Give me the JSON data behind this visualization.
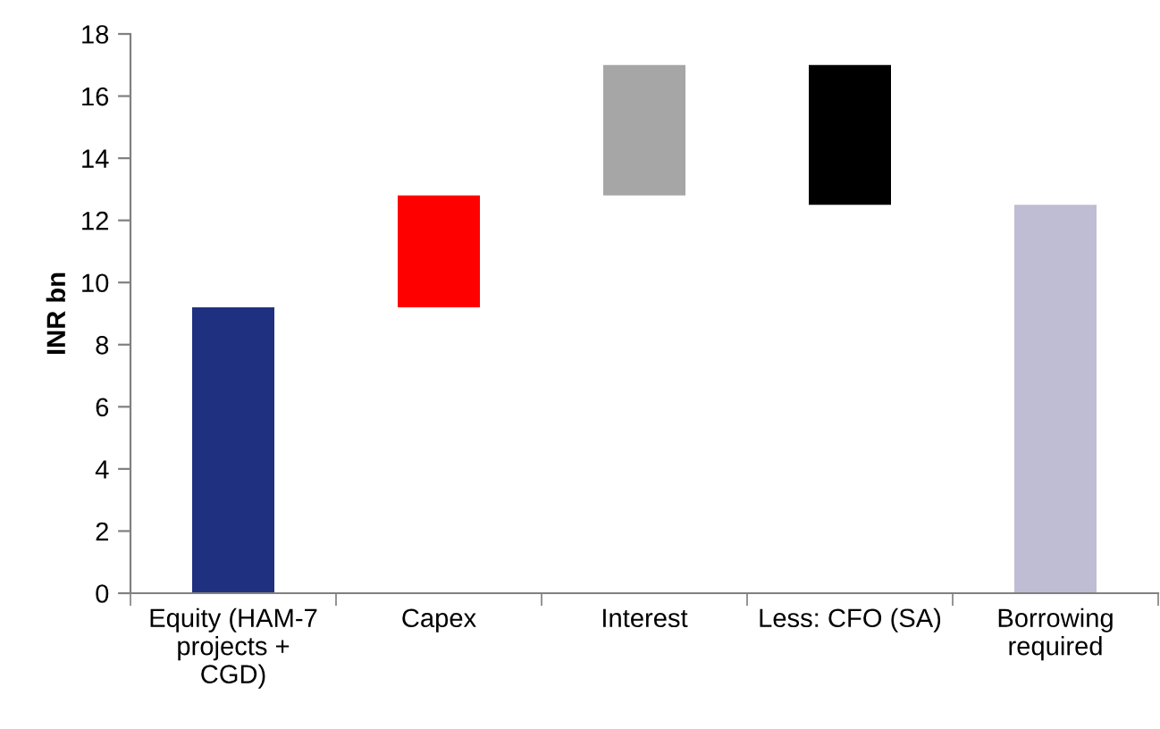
{
  "chart_data": {
    "type": "bar",
    "ylabel": "INR bn",
    "categories": [
      "Equity (HAM-7\nprojects +\nCGD)",
      "Capex",
      "Interest",
      "Less: CFO (SA)",
      "Borrowing\nrequired"
    ],
    "values": [
      9.2,
      3.6,
      4.2,
      4.5,
      12.5
    ],
    "base": [
      0,
      9.2,
      12.8,
      12.5,
      0
    ],
    "colors": [
      "#203080",
      "#ff0000",
      "#a6a6a6",
      "#000000",
      "#bfbdd4"
    ],
    "ylim": [
      0,
      18
    ],
    "yticks": [
      0,
      2,
      4,
      6,
      8,
      10,
      12,
      14,
      16,
      18
    ],
    "grid": false
  }
}
